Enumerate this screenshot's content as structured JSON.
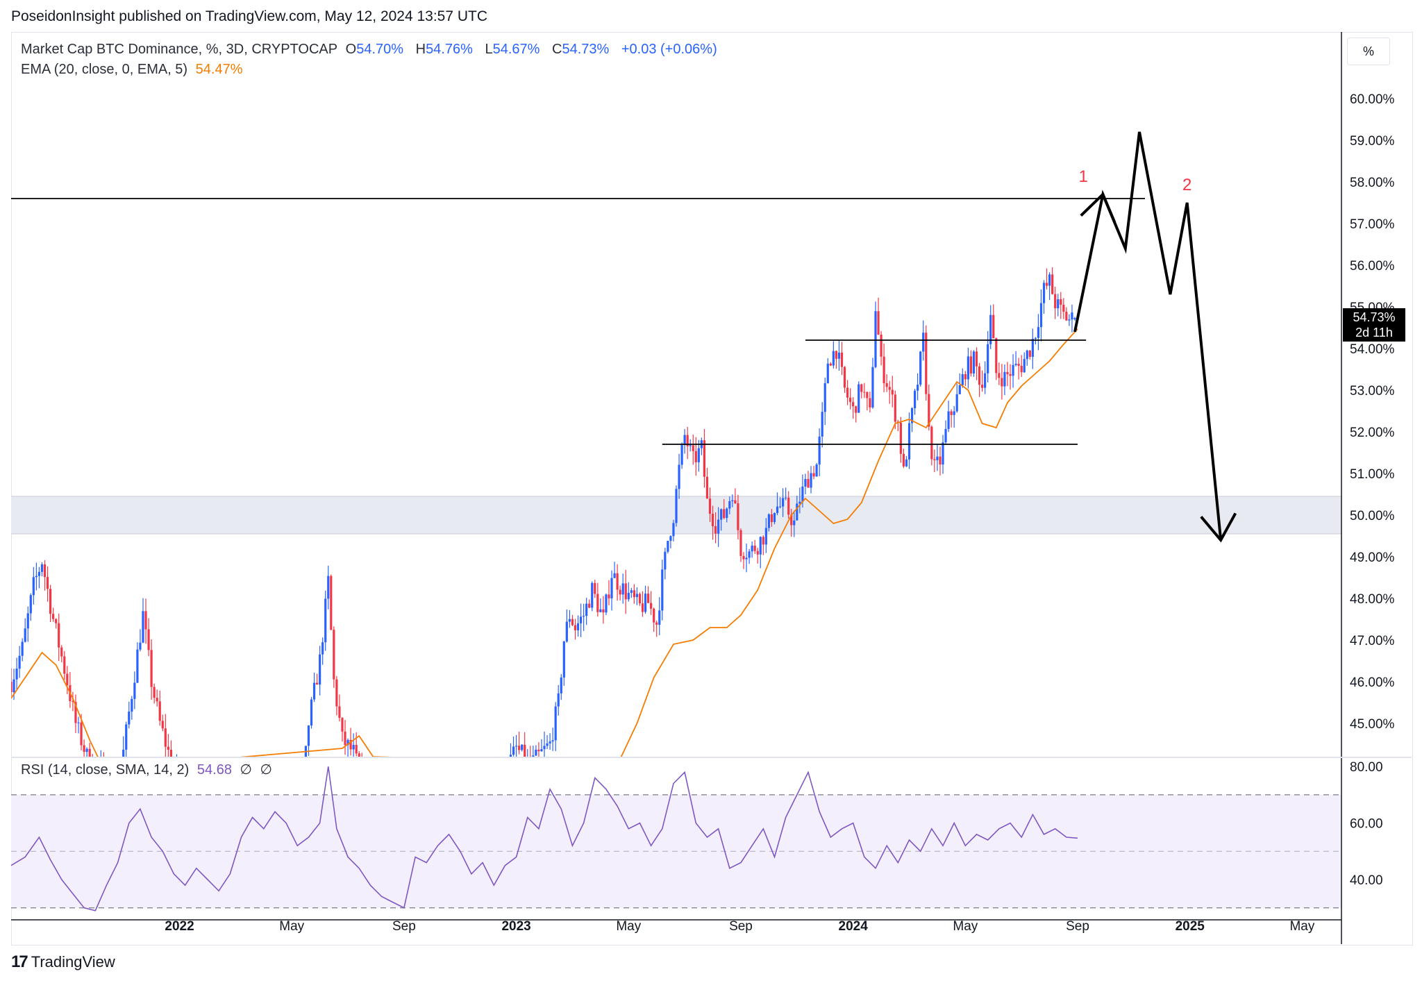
{
  "header": {
    "published": "PoseidonInsight published on TradingView.com, May 12, 2024 13:57 UTC"
  },
  "legend": {
    "symbol": "Market Cap BTC Dominance, %, 3D, CRYPTOCAP",
    "open_label": "O",
    "open": "54.70%",
    "high_label": "H",
    "high": "54.76%",
    "low_label": "L",
    "low": "54.67%",
    "close_label": "C",
    "close": "54.73%",
    "change": "+0.03 (+0.06%)",
    "ema_label": "EMA (20, close, 0, EMA, 5)",
    "ema_value": "54.47%",
    "rsi_label": "RSI (14, close, SMA, 14, 2)",
    "rsi_value": "54.68",
    "rsi_na1": "∅",
    "rsi_na2": "∅"
  },
  "scale_button": "%",
  "price_badge": {
    "price": "54.73%",
    "countdown": "2d 11h"
  },
  "footer": {
    "brand": "TradingView",
    "brand_mark": "17"
  },
  "colors": {
    "up": "#2962ff",
    "down": "#f23645",
    "ema": "#f57c00",
    "rsi": "#7e57c2",
    "zone": "#e8eaf2"
  },
  "chart_data": [
    {
      "type": "candlestick",
      "title": "",
      "price_axis": {
        "ticks": [
          "60.00%",
          "59.00%",
          "58.00%",
          "57.00%",
          "56.00%",
          "55.00%",
          "54.00%",
          "53.00%",
          "52.00%",
          "51.00%",
          "50.00%",
          "49.00%",
          "48.00%",
          "47.00%",
          "46.00%",
          "45.00%"
        ],
        "range": [
          44.2,
          61.6
        ]
      },
      "time_axis": {
        "labels": [
          {
            "label": "2022",
            "bold": true,
            "t": 9.0
          },
          {
            "label": "May",
            "bold": false,
            "t": 13.0
          },
          {
            "label": "Sep",
            "bold": false,
            "t": 17.0
          },
          {
            "label": "2023",
            "bold": true,
            "t": 21.0
          },
          {
            "label": "May",
            "bold": false,
            "t": 25.0
          },
          {
            "label": "Sep",
            "bold": false,
            "t": 29.0
          },
          {
            "label": "2024",
            "bold": true,
            "t": 33.0
          },
          {
            "label": "May",
            "bold": false,
            "t": 37.0
          },
          {
            "label": "Sep",
            "bold": false,
            "t": 41.0
          },
          {
            "label": "2025",
            "bold": true,
            "t": 45.0
          },
          {
            "label": "May",
            "bold": false,
            "t": 49.0
          }
        ],
        "range": [
          3.0,
          50.4
        ]
      },
      "price_path": [
        [
          3.0,
          46.0
        ],
        [
          3.4,
          46.8
        ],
        [
          3.8,
          48.3
        ],
        [
          4.1,
          48.9
        ],
        [
          4.5,
          47.5
        ],
        [
          5.0,
          46.0
        ],
        [
          5.3,
          45.0
        ],
        [
          5.7,
          44.2
        ],
        [
          6.7,
          43.5
        ],
        [
          7.0,
          44.3
        ],
        [
          7.4,
          46.2
        ],
        [
          7.7,
          47.6
        ],
        [
          8.0,
          46.0
        ],
        [
          8.3,
          45.0
        ],
        [
          8.6,
          44.3
        ],
        [
          9.5,
          43.0
        ],
        [
          11.0,
          41.5
        ],
        [
          12.5,
          41.0
        ],
        [
          13.2,
          42.0
        ],
        [
          13.6,
          45.0
        ],
        [
          14.0,
          46.5
        ],
        [
          14.3,
          48.4
        ],
        [
          14.5,
          46.0
        ],
        [
          14.8,
          44.6
        ],
        [
          15.2,
          44.3
        ],
        [
          16.0,
          42.5
        ],
        [
          17.5,
          41.5
        ],
        [
          19.0,
          41.8
        ],
        [
          20.0,
          43.0
        ],
        [
          21.0,
          44.4
        ],
        [
          21.5,
          44.0
        ],
        [
          22.2,
          44.5
        ],
        [
          22.5,
          45.5
        ],
        [
          22.7,
          47.0
        ],
        [
          22.9,
          47.6
        ],
        [
          23.1,
          47.3
        ],
        [
          23.4,
          47.6
        ],
        [
          23.7,
          48.2
        ],
        [
          24.1,
          47.5
        ],
        [
          24.4,
          48.6
        ],
        [
          24.7,
          48.3
        ],
        [
          25.1,
          48.0
        ],
        [
          25.4,
          47.8
        ],
        [
          25.7,
          47.9
        ],
        [
          26.0,
          47.4
        ],
        [
          26.2,
          48.5
        ],
        [
          26.4,
          49.4
        ],
        [
          26.6,
          50.0
        ],
        [
          26.8,
          51.1
        ],
        [
          27.0,
          51.9
        ],
        [
          27.3,
          51.3
        ],
        [
          27.6,
          51.6
        ],
        [
          27.8,
          50.3
        ],
        [
          28.1,
          49.8
        ],
        [
          28.4,
          50.0
        ],
        [
          28.7,
          50.6
        ],
        [
          29.0,
          49.2
        ],
        [
          29.3,
          49.1
        ],
        [
          29.6,
          49.3
        ],
        [
          29.9,
          49.6
        ],
        [
          30.2,
          50.2
        ],
        [
          30.6,
          50.2
        ],
        [
          30.9,
          49.8
        ],
        [
          31.1,
          50.4
        ],
        [
          31.4,
          50.9
        ],
        [
          31.7,
          51.2
        ],
        [
          31.9,
          52.3
        ],
        [
          32.1,
          53.7
        ],
        [
          32.4,
          54.0
        ],
        [
          32.7,
          53.0
        ],
        [
          33.0,
          52.5
        ],
        [
          33.3,
          53.1
        ],
        [
          33.6,
          52.4
        ],
        [
          33.8,
          55.0
        ],
        [
          34.0,
          53.6
        ],
        [
          34.3,
          53.0
        ],
        [
          34.6,
          52.2
        ],
        [
          34.8,
          51.0
        ],
        [
          35.0,
          52.0
        ],
        [
          35.3,
          53.2
        ],
        [
          35.5,
          54.2
        ],
        [
          35.7,
          52.0
        ],
        [
          35.9,
          51.1
        ],
        [
          36.1,
          51.3
        ],
        [
          36.4,
          52.3
        ],
        [
          36.7,
          52.8
        ],
        [
          37.0,
          53.5
        ],
        [
          37.3,
          53.7
        ],
        [
          37.6,
          53.1
        ],
        [
          37.9,
          54.7
        ],
        [
          38.1,
          53.4
        ],
        [
          38.4,
          53.3
        ],
        [
          38.7,
          53.5
        ],
        [
          39.0,
          53.6
        ],
        [
          39.3,
          54.0
        ],
        [
          39.5,
          54.4
        ],
        [
          39.8,
          55.4
        ],
        [
          40.0,
          55.6
        ],
        [
          40.2,
          55.1
        ],
        [
          40.5,
          54.8
        ],
        [
          40.7,
          54.7
        ],
        [
          40.9,
          54.73
        ]
      ],
      "ema_path": [
        [
          3.0,
          45.6
        ],
        [
          3.6,
          46.2
        ],
        [
          4.1,
          46.7
        ],
        [
          4.6,
          46.4
        ],
        [
          5.2,
          45.6
        ],
        [
          5.8,
          44.6
        ],
        [
          6.3,
          43.9
        ],
        [
          14.8,
          44.4
        ],
        [
          15.4,
          44.7
        ],
        [
          15.9,
          44.2
        ],
        [
          24.6,
          44.0
        ],
        [
          25.3,
          45.0
        ],
        [
          25.9,
          46.1
        ],
        [
          26.6,
          46.9
        ],
        [
          27.3,
          47.0
        ],
        [
          27.9,
          47.3
        ],
        [
          28.5,
          47.3
        ],
        [
          29.0,
          47.6
        ],
        [
          29.6,
          48.2
        ],
        [
          30.2,
          49.2
        ],
        [
          30.8,
          50.0
        ],
        [
          31.3,
          50.4
        ],
        [
          31.8,
          50.1
        ],
        [
          32.3,
          49.8
        ],
        [
          32.8,
          49.9
        ],
        [
          33.3,
          50.3
        ],
        [
          33.9,
          51.3
        ],
        [
          34.5,
          52.2
        ],
        [
          35.0,
          52.3
        ],
        [
          35.6,
          52.1
        ],
        [
          36.1,
          52.6
        ],
        [
          36.7,
          53.2
        ],
        [
          37.1,
          53.0
        ],
        [
          37.6,
          52.2
        ],
        [
          38.1,
          52.1
        ],
        [
          38.5,
          52.7
        ],
        [
          39.0,
          53.1
        ],
        [
          39.5,
          53.4
        ],
        [
          40.0,
          53.7
        ],
        [
          40.5,
          54.1
        ],
        [
          41.0,
          54.47
        ]
      ],
      "last_candle": {
        "t": 40.9,
        "open": 54.7,
        "high": 54.76,
        "low": 54.67,
        "close": 54.73
      },
      "support_zone": [
        49.55,
        50.45
      ],
      "levels": [
        {
          "price": 57.6,
          "from_t": 3.0,
          "to_t": 43.4
        },
        {
          "price": 54.2,
          "from_t": 31.3,
          "to_t": 41.3
        },
        {
          "price": 51.7,
          "from_t": 26.2,
          "to_t": 41.0
        }
      ],
      "projection": [
        [
          40.9,
          54.4
        ],
        [
          41.9,
          57.7
        ],
        [
          42.7,
          56.4
        ],
        [
          43.2,
          59.2
        ],
        [
          44.3,
          55.3
        ],
        [
          44.9,
          57.5
        ],
        [
          46.1,
          49.4
        ]
      ],
      "annotations": [
        {
          "text": "1",
          "t": 41.2,
          "price": 58.0
        },
        {
          "text": "2",
          "t": 44.9,
          "price": 57.8
        }
      ]
    },
    {
      "type": "line",
      "title": "",
      "name": "RSI",
      "y_ticks": [
        "80.00",
        "60.00",
        "40.00"
      ],
      "y_range": [
        26,
        83
      ],
      "bands": [
        70,
        50,
        30
      ],
      "x": [
        3.0,
        3.5,
        4.0,
        4.4,
        4.8,
        5.2,
        5.6,
        6.0,
        6.4,
        6.8,
        7.2,
        7.6,
        8.0,
        8.4,
        8.8,
        9.2,
        9.6,
        10.0,
        10.4,
        10.8,
        11.2,
        11.6,
        12.0,
        12.4,
        12.8,
        13.2,
        13.6,
        14.0,
        14.3,
        14.6,
        15.0,
        15.4,
        15.8,
        16.2,
        16.6,
        17.0,
        17.4,
        17.8,
        18.2,
        18.6,
        19.0,
        19.4,
        19.8,
        20.2,
        20.6,
        21.0,
        21.4,
        21.8,
        22.2,
        22.6,
        23.0,
        23.4,
        23.8,
        24.2,
        24.6,
        25.0,
        25.4,
        25.8,
        26.2,
        26.6,
        27.0,
        27.4,
        27.8,
        28.2,
        28.6,
        29.0,
        29.4,
        29.8,
        30.2,
        30.6,
        31.0,
        31.4,
        31.8,
        32.2,
        32.6,
        33.0,
        33.4,
        33.8,
        34.2,
        34.6,
        35.0,
        35.4,
        35.8,
        36.2,
        36.6,
        37.0,
        37.4,
        37.8,
        38.2,
        38.6,
        39.0,
        39.4,
        39.8,
        40.2,
        40.6,
        41.0
      ],
      "values": [
        45,
        48,
        55,
        47,
        40,
        35,
        30,
        29,
        38,
        46,
        60,
        65,
        55,
        50,
        42,
        38,
        44,
        40,
        36,
        42,
        55,
        62,
        58,
        64,
        60,
        52,
        55,
        60,
        80,
        58,
        48,
        44,
        38,
        34,
        32,
        30,
        48,
        46,
        52,
        56,
        50,
        42,
        46,
        38,
        45,
        48,
        62,
        58,
        72,
        65,
        52,
        60,
        76,
        72,
        66,
        58,
        60,
        52,
        58,
        74,
        78,
        60,
        55,
        58,
        44,
        46,
        52,
        58,
        48,
        62,
        70,
        78,
        64,
        55,
        58,
        60,
        48,
        44,
        52,
        46,
        54,
        50,
        58,
        52,
        60,
        52,
        56,
        54,
        58,
        60,
        55,
        63,
        56,
        58,
        55,
        54.68
      ]
    }
  ]
}
